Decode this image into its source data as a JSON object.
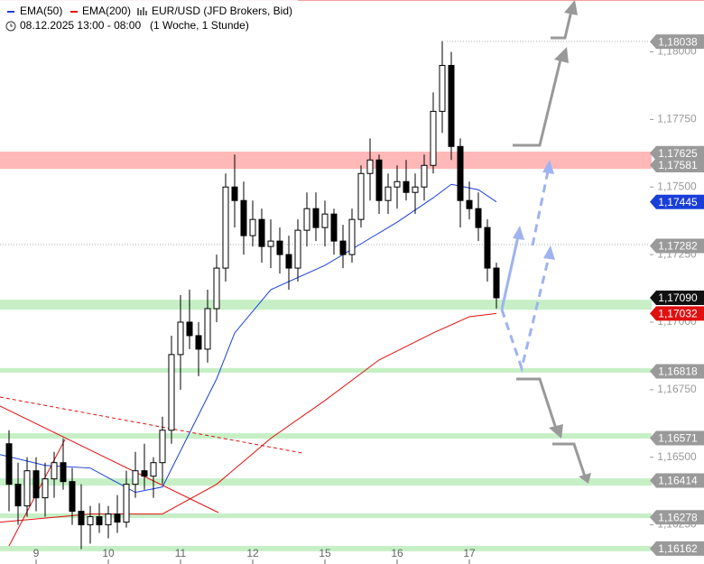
{
  "chart_data": {
    "type": "candlestick",
    "legend": [
      {
        "name": "EMA(50)",
        "color": "#1a3fd8"
      },
      {
        "name": "EMA(200)",
        "color": "#e01010"
      }
    ],
    "title": "EUR/USD (JFD Brokers, Bid)",
    "subtitle": "08.12.2025 13:00 - 08:00",
    "period": "(1 Woche, 1 Stunde)",
    "xlim": [
      0,
      72
    ],
    "ylim": [
      1.16105,
      1.18192
    ],
    "xticks": [
      {
        "value": 4,
        "label": "9"
      },
      {
        "value": 12,
        "label": "10"
      },
      {
        "value": 20,
        "label": "11"
      },
      {
        "value": 28,
        "label": "12"
      },
      {
        "value": 36,
        "label": "15"
      },
      {
        "value": 44,
        "label": "16"
      },
      {
        "value": 52,
        "label": "17"
      }
    ],
    "yticks": [
      {
        "value": 1.18,
        "label": "1,18000"
      },
      {
        "value": 1.1775,
        "label": "1,17750"
      },
      {
        "value": 1.175,
        "label": "1,17500"
      },
      {
        "value": 1.1725,
        "label": "1,17250"
      },
      {
        "value": 1.17,
        "label": "1,17000"
      },
      {
        "value": 1.1675,
        "label": "1,16750"
      },
      {
        "value": 1.165,
        "label": "1,16500"
      },
      {
        "value": 1.1625,
        "label": "1,16250"
      }
    ],
    "candles": [
      [
        1,
        1.1655,
        1.166,
        1.163,
        1.164
      ],
      [
        2,
        1.164,
        1.1648,
        1.1625,
        1.1632
      ],
      [
        3,
        1.1632,
        1.165,
        1.1628,
        1.1645
      ],
      [
        4,
        1.1645,
        1.165,
        1.163,
        1.1635
      ],
      [
        5,
        1.1635,
        1.1648,
        1.1628,
        1.1642
      ],
      [
        6,
        1.1642,
        1.1652,
        1.1635,
        1.1648
      ],
      [
        7,
        1.1648,
        1.1657,
        1.1638,
        1.1641
      ],
      [
        8,
        1.1641,
        1.1646,
        1.1625,
        1.163
      ],
      [
        9,
        1.163,
        1.164,
        1.1616,
        1.1625
      ],
      [
        10,
        1.1625,
        1.1632,
        1.1618,
        1.1628
      ],
      [
        11,
        1.1628,
        1.1633,
        1.1622,
        1.1625
      ],
      [
        12,
        1.1625,
        1.1632,
        1.162,
        1.1629
      ],
      [
        13,
        1.1629,
        1.1636,
        1.1622,
        1.1626
      ],
      [
        14,
        1.1626,
        1.1645,
        1.1624,
        1.164
      ],
      [
        15,
        1.164,
        1.1652,
        1.1635,
        1.1645
      ],
      [
        16,
        1.1645,
        1.1655,
        1.1638,
        1.1643
      ],
      [
        17,
        1.1643,
        1.165,
        1.1635,
        1.1648
      ],
      [
        18,
        1.1648,
        1.1665,
        1.164,
        1.166
      ],
      [
        19,
        1.166,
        1.1695,
        1.1655,
        1.1688
      ],
      [
        20,
        1.1688,
        1.171,
        1.1675,
        1.17
      ],
      [
        21,
        1.17,
        1.1712,
        1.169,
        1.1695
      ],
      [
        22,
        1.1695,
        1.17,
        1.168,
        1.169
      ],
      [
        23,
        1.169,
        1.1712,
        1.1685,
        1.1705
      ],
      [
        24,
        1.1705,
        1.1725,
        1.17,
        1.172
      ],
      [
        25,
        1.172,
        1.1755,
        1.1715,
        1.175
      ],
      [
        26,
        1.175,
        1.1762,
        1.1735,
        1.1745
      ],
      [
        27,
        1.1745,
        1.1752,
        1.1725,
        1.1732
      ],
      [
        28,
        1.1732,
        1.1745,
        1.1728,
        1.1738
      ],
      [
        29,
        1.1738,
        1.1742,
        1.1722,
        1.1728
      ],
      [
        30,
        1.1728,
        1.1738,
        1.172,
        1.173
      ],
      [
        31,
        1.173,
        1.1735,
        1.1718,
        1.1725
      ],
      [
        32,
        1.1725,
        1.1732,
        1.1712,
        1.172
      ],
      [
        33,
        1.172,
        1.1738,
        1.1715,
        1.1734
      ],
      [
        34,
        1.1734,
        1.1748,
        1.1728,
        1.1742
      ],
      [
        35,
        1.1742,
        1.1748,
        1.173,
        1.1735
      ],
      [
        36,
        1.1735,
        1.1745,
        1.1728,
        1.174
      ],
      [
        37,
        1.174,
        1.1742,
        1.1725,
        1.173
      ],
      [
        38,
        1.173,
        1.1736,
        1.172,
        1.1725
      ],
      [
        39,
        1.1725,
        1.1742,
        1.1722,
        1.1738
      ],
      [
        40,
        1.1738,
        1.1758,
        1.1735,
        1.1755
      ],
      [
        41,
        1.1755,
        1.1768,
        1.1745,
        1.176
      ],
      [
        42,
        1.176,
        1.1762,
        1.174,
        1.1745
      ],
      [
        43,
        1.1745,
        1.1755,
        1.174,
        1.175
      ],
      [
        44,
        1.175,
        1.1758,
        1.1742,
        1.1752
      ],
      [
        45,
        1.1752,
        1.176,
        1.1745,
        1.1748
      ],
      [
        46,
        1.1748,
        1.1755,
        1.174,
        1.175
      ],
      [
        47,
        1.175,
        1.1762,
        1.1745,
        1.1758
      ],
      [
        48,
        1.1758,
        1.1785,
        1.1755,
        1.1778
      ],
      [
        49,
        1.1778,
        1.1804,
        1.177,
        1.1795
      ],
      [
        50,
        1.1795,
        1.18,
        1.176,
        1.1765
      ],
      [
        51,
        1.1765,
        1.1768,
        1.1735,
        1.1745
      ],
      [
        52,
        1.1745,
        1.1752,
        1.1738,
        1.1742
      ],
      [
        53,
        1.1742,
        1.1748,
        1.173,
        1.1735
      ],
      [
        54,
        1.1735,
        1.1738,
        1.1715,
        1.172
      ],
      [
        55,
        1.172,
        1.1722,
        1.1705,
        1.1709
      ]
    ],
    "series": [
      {
        "name": "EMA(50)",
        "color": "#1a3fd8",
        "x": [
          0,
          5,
          10,
          15,
          18,
          21,
          24,
          26,
          30,
          36,
          40,
          44,
          48,
          50,
          53,
          55
        ],
        "values": [
          1.1651,
          1.1647,
          1.1646,
          1.1637,
          1.1639,
          1.1659,
          1.1679,
          1.1696,
          1.1712,
          1.1721,
          1.1729,
          1.1737,
          1.1746,
          1.1751,
          1.1749,
          1.17445
        ]
      },
      {
        "name": "EMA(200)",
        "color": "#e01010",
        "x": [
          0,
          10,
          18,
          24,
          30,
          36,
          42,
          48,
          52,
          55
        ],
        "values": [
          1.1626,
          1.1629,
          1.1629,
          1.164,
          1.1657,
          1.1671,
          1.1686,
          1.1696,
          1.1702,
          1.17032
        ]
      }
    ],
    "zones": [
      {
        "from": 1.17567,
        "to": 1.17631,
        "color": "#ffb8b8"
      },
      {
        "from": 1.17046,
        "to": 1.17083,
        "color": "#c6efc6"
      },
      {
        "from": 1.16813,
        "to": 1.1683,
        "color": "#c6efc6"
      },
      {
        "from": 1.16569,
        "to": 1.16589,
        "color": "#c6efc6"
      },
      {
        "from": 1.16395,
        "to": 1.16422,
        "color": "#c6efc6"
      },
      {
        "from": 1.16275,
        "to": 1.16292,
        "color": "#c6efc6"
      },
      {
        "from": 1.16152,
        "to": 1.16172,
        "color": "#c6efc6"
      }
    ],
    "price_tags": [
      {
        "value": 1.18038,
        "label": "1,18038",
        "color": "#9a9a9a"
      },
      {
        "value": 1.17625,
        "label": "1,17625",
        "color": "#9a9a9a"
      },
      {
        "value": 1.17581,
        "label": "1,17581",
        "color": "#9a9a9a"
      },
      {
        "value": 1.17445,
        "label": "1,17445",
        "color": "#1a3fd8"
      },
      {
        "value": 1.17282,
        "label": "1,17282",
        "color": "#9a9a9a"
      },
      {
        "value": 1.17032,
        "label": "1,17032",
        "color": "#e01010"
      },
      {
        "value": 1.1709,
        "label": "1,17090",
        "color": "#111111"
      },
      {
        "value": 1.16818,
        "label": "1,16818",
        "color": "#9a9a9a"
      },
      {
        "value": 1.16571,
        "label": "1,16571",
        "color": "#9a9a9a"
      },
      {
        "value": 1.16414,
        "label": "1,16414",
        "color": "#9a9a9a"
      },
      {
        "value": 1.16278,
        "label": "1,16278",
        "color": "#9a9a9a"
      },
      {
        "value": 1.16162,
        "label": "1,16162",
        "color": "#9a9a9a"
      }
    ]
  }
}
